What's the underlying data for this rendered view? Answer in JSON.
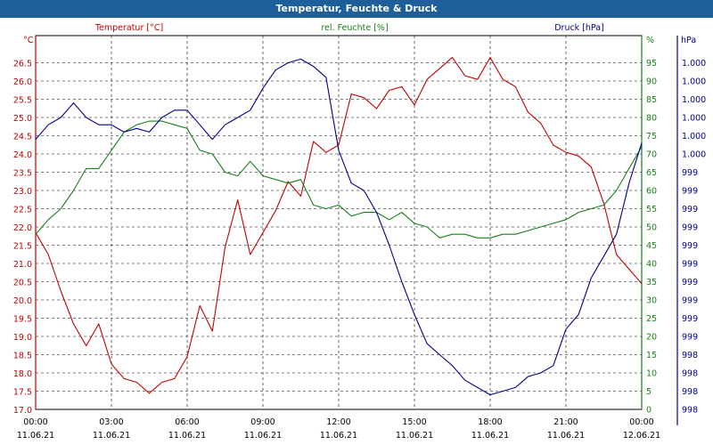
{
  "window": {
    "title": "Temperatur, Feuchte & Druck"
  },
  "chart_data": {
    "type": "line",
    "title": "Temperatur, Feuchte & Druck",
    "grid": true,
    "colors": {
      "temperature": "#c00000",
      "humidity": "#1a7f1a",
      "pressure": "#00008b",
      "grid": "#000000"
    },
    "x_ticks": [
      {
        "time": "00:00",
        "date": "11.06.21"
      },
      {
        "time": "03:00",
        "date": "11.06.21"
      },
      {
        "time": "06:00",
        "date": "11.06.21"
      },
      {
        "time": "09:00",
        "date": "11.06.21"
      },
      {
        "time": "12:00",
        "date": "11.06.21"
      },
      {
        "time": "15:00",
        "date": "11.06.21"
      },
      {
        "time": "18:00",
        "date": "11.06.21"
      },
      {
        "time": "21:00",
        "date": "11.06.21"
      },
      {
        "time": "00:00",
        "date": "12.06.21"
      }
    ],
    "axes": {
      "temperature": {
        "label": "Temperatur [°C]",
        "unit": "°C",
        "range": [
          17.0,
          26.5
        ],
        "ticks": [
          "17.0",
          "17.5",
          "18.0",
          "18.5",
          "19.0",
          "19.5",
          "20.0",
          "20.5",
          "21.0",
          "21.5",
          "22.0",
          "22.5",
          "23.0",
          "23.5",
          "24.0",
          "24.5",
          "25.0",
          "25.5",
          "26.0",
          "26.5"
        ]
      },
      "humidity": {
        "label": "rel. Feuchte [%]",
        "unit": "%",
        "range": [
          0,
          95
        ],
        "ticks": [
          "0",
          "5",
          "10",
          "15",
          "20",
          "25",
          "30",
          "35",
          "40",
          "45",
          "50",
          "55",
          "60",
          "65",
          "70",
          "75",
          "80",
          "85",
          "90",
          "95"
        ]
      },
      "pressure": {
        "label": "Druck [hPa]",
        "unit": "hPa",
        "ticks": [
          "998",
          "998",
          "998",
          "998",
          "999",
          "999",
          "999",
          "999",
          "999",
          "999",
          "999",
          "999",
          "999",
          "999",
          "1.000",
          "1.000",
          "1.000",
          "1.000",
          "1.000",
          "1.000"
        ]
      }
    },
    "series": [
      {
        "name": "Temperatur [°C]",
        "axis": "temperature",
        "x": [
          0.0,
          0.5,
          1.0,
          1.5,
          2.0,
          2.5,
          3.0,
          3.5,
          4.0,
          4.5,
          5.0,
          5.5,
          6.0,
          6.5,
          7.0,
          7.5,
          8.0,
          8.5,
          9.0,
          9.5,
          10.0,
          10.5,
          11.0,
          11.5,
          12.0,
          12.5,
          13.0,
          13.5,
          14.0,
          14.5,
          15.0,
          15.5,
          16.0,
          16.5,
          17.0,
          17.5,
          18.0,
          18.5,
          19.0,
          19.5,
          20.0,
          20.5,
          21.0,
          21.5,
          22.0,
          22.5,
          23.0,
          23.5,
          24.0
        ],
        "values": [
          21.6,
          21.0,
          20.0,
          19.1,
          18.5,
          19.1,
          18.0,
          17.6,
          17.5,
          17.2,
          17.5,
          17.6,
          18.2,
          19.6,
          18.9,
          21.2,
          22.5,
          21.0,
          21.6,
          22.2,
          23.0,
          22.6,
          24.1,
          23.8,
          24.0,
          25.4,
          25.3,
          25.0,
          25.5,
          25.6,
          25.1,
          25.8,
          26.1,
          26.4,
          25.9,
          25.8,
          26.4,
          25.8,
          25.6,
          24.9,
          24.6,
          24.0,
          23.8,
          23.7,
          23.4,
          22.4,
          21.0,
          20.6,
          20.2
        ]
      },
      {
        "name": "rel. Feuchte [%]",
        "axis": "humidity",
        "x": [
          0.0,
          0.5,
          1.0,
          1.5,
          2.0,
          2.5,
          3.0,
          3.5,
          4.0,
          4.5,
          5.0,
          5.5,
          6.0,
          6.5,
          7.0,
          7.5,
          8.0,
          8.5,
          9.0,
          9.5,
          10.0,
          10.5,
          11.0,
          11.5,
          12.0,
          12.5,
          13.0,
          13.5,
          14.0,
          14.5,
          15.0,
          15.5,
          16.0,
          16.5,
          17.0,
          17.5,
          18.0,
          18.5,
          19.0,
          19.5,
          20.0,
          20.5,
          21.0,
          21.5,
          22.0,
          22.5,
          23.0,
          23.5,
          24.0
        ],
        "values": [
          48,
          52,
          55,
          60,
          66,
          66,
          71,
          76,
          78,
          79,
          79,
          78,
          77,
          71,
          70,
          65,
          64,
          68,
          64,
          63,
          62,
          63,
          56,
          55,
          56,
          53,
          54,
          54,
          52,
          54,
          51,
          50,
          47,
          48,
          48,
          47,
          47,
          48,
          48,
          49,
          50,
          51,
          52,
          54,
          55,
          56,
          60,
          66,
          72
        ]
      },
      {
        "name": "Druck [hPa]",
        "axis": "pressure",
        "x": [
          0.0,
          0.5,
          1.0,
          1.5,
          2.0,
          2.5,
          3.0,
          3.5,
          4.0,
          4.5,
          5.0,
          5.5,
          6.0,
          6.5,
          7.0,
          7.5,
          8.0,
          8.5,
          9.0,
          9.5,
          10.0,
          10.5,
          11.0,
          11.5,
          12.0,
          12.5,
          13.0,
          13.5,
          14.0,
          14.5,
          15.0,
          15.5,
          16.0,
          16.5,
          17.0,
          17.5,
          18.0,
          18.5,
          19.0,
          19.5,
          20.0,
          20.5,
          21.0,
          21.5,
          22.0,
          22.5,
          23.0,
          23.5,
          24.0
        ],
        "values": [
          74,
          78,
          80,
          84,
          80,
          78,
          78,
          76,
          77,
          76,
          80,
          82,
          82,
          78,
          74,
          78,
          80,
          82,
          88,
          93,
          95,
          96,
          94,
          91,
          71,
          62,
          60,
          54,
          45,
          35,
          26,
          18,
          15,
          12,
          8,
          6,
          4,
          5,
          6,
          9,
          10,
          12,
          22,
          26,
          36,
          42,
          48,
          62,
          73
        ]
      }
    ]
  }
}
